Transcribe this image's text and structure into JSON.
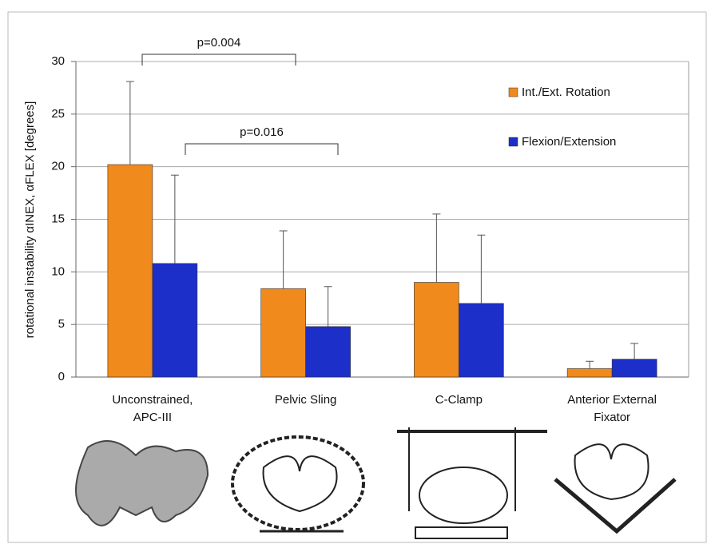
{
  "chart_data": {
    "type": "bar",
    "ylabel": "rotational instability αINEX, αFLEX [degrees]",
    "categories": [
      "Unconstrained, APC-III",
      "Pelvic Sling",
      "C-Clamp",
      "Anterior External Fixator"
    ],
    "series": [
      {
        "name": "Int./Ext. Rotation",
        "color": "#f08a1c",
        "values": [
          20.2,
          8.4,
          9.0,
          0.8
        ],
        "errors": [
          7.9,
          5.5,
          6.5,
          0.7
        ]
      },
      {
        "name": "Flexion/Extension",
        "color": "#1c2fc8",
        "values": [
          10.8,
          4.8,
          7.0,
          1.7
        ],
        "errors": [
          8.4,
          3.8,
          6.5,
          1.5
        ]
      }
    ],
    "ylim": [
      0,
      30
    ],
    "yticks": [
      0,
      5,
      10,
      15,
      20,
      25,
      30
    ],
    "grid": true,
    "annotations": [
      "p=0.004",
      "p=0.016"
    ]
  }
}
